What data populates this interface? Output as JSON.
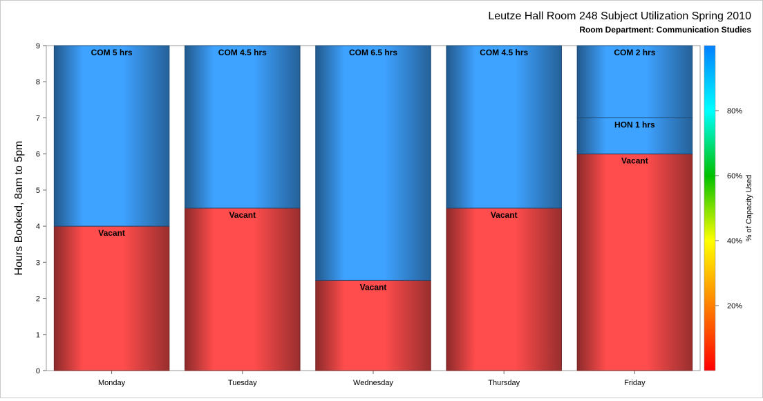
{
  "chart_data": {
    "type": "bar",
    "stacked": true,
    "title": "Leutze Hall Room 248 Subject Utilization Spring 2010",
    "subtitle": "Room Department:  Communication Studies",
    "ylabel": "Hours Booked, 8am to 5pm",
    "xlabel": "",
    "ylim": [
      0,
      9
    ],
    "yticks": [
      "0",
      "1",
      "2",
      "3",
      "4",
      "5",
      "6",
      "7",
      "8",
      "9"
    ],
    "categories": [
      "Monday",
      "Tuesday",
      "Wednesday",
      "Thursday",
      "Friday"
    ],
    "bars": [
      {
        "day": "Monday",
        "segments": [
          {
            "label": "Vacant",
            "hours": 4,
            "color": "#ff4c4c"
          },
          {
            "label": "COM 5 hrs",
            "hours": 5,
            "color": "#3ea2ff"
          }
        ]
      },
      {
        "day": "Tuesday",
        "segments": [
          {
            "label": "Vacant",
            "hours": 4.5,
            "color": "#ff4c4c"
          },
          {
            "label": "COM 4.5 hrs",
            "hours": 4.5,
            "color": "#3ea2ff"
          }
        ]
      },
      {
        "day": "Wednesday",
        "segments": [
          {
            "label": "Vacant",
            "hours": 2.5,
            "color": "#ff4c4c"
          },
          {
            "label": "COM 6.5 hrs",
            "hours": 6.5,
            "color": "#3ea2ff"
          }
        ]
      },
      {
        "day": "Thursday",
        "segments": [
          {
            "label": "Vacant",
            "hours": 4.5,
            "color": "#ff4c4c"
          },
          {
            "label": "COM 4.5 hrs",
            "hours": 4.5,
            "color": "#3ea2ff"
          }
        ]
      },
      {
        "day": "Friday",
        "segments": [
          {
            "label": "Vacant",
            "hours": 6,
            "color": "#ff4c4c"
          },
          {
            "label": "HON 1 hrs",
            "hours": 1,
            "color": "#3ea2ff"
          },
          {
            "label": "COM 2 hrs",
            "hours": 2,
            "color": "#3ea2ff"
          }
        ]
      }
    ],
    "colorbar": {
      "label": "% of Capacity Used",
      "ticks": [
        "20%",
        "40%",
        "60%",
        "80%"
      ],
      "tick_values": [
        20,
        40,
        60,
        80
      ],
      "range": [
        0,
        100
      ],
      "colors": [
        "#ff0000",
        "#ff8000",
        "#ffff00",
        "#00c000",
        "#00ffff",
        "#0080ff"
      ]
    },
    "grid": false
  }
}
